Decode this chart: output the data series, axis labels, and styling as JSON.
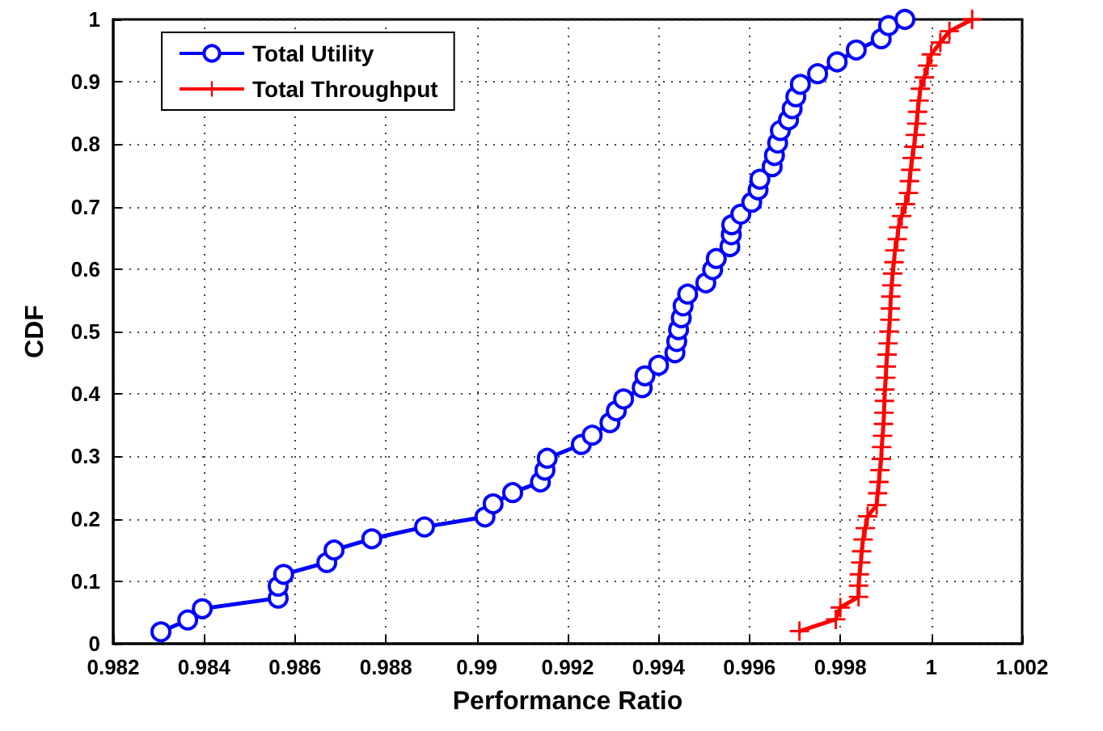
{
  "chart_data": {
    "type": "line",
    "xlabel": "Performance Ratio",
    "ylabel": "CDF",
    "xlim": [
      0.982,
      1.002
    ],
    "xticks": [
      0.982,
      0.984,
      0.986,
      0.988,
      0.99,
      0.992,
      0.994,
      0.996,
      0.998,
      1,
      1.002
    ],
    "ylim": [
      0,
      1
    ],
    "yticks": [
      0,
      0.1,
      0.2,
      0.3,
      0.4,
      0.5,
      0.6,
      0.7,
      0.8,
      0.9,
      1
    ],
    "grid": true,
    "legend": "top left",
    "line_style": "solid",
    "series": [
      {
        "name": "Total Utility",
        "color": "#0000ff",
        "marker": "circle",
        "x": [
          0.98305,
          0.98364,
          0.98396,
          0.98563,
          0.98563,
          0.98575,
          0.9867,
          0.98686,
          0.98769,
          0.98885,
          0.99018,
          0.99036,
          0.99079,
          0.9914,
          0.9915,
          0.99155,
          0.9923,
          0.99254,
          0.99293,
          0.99307,
          0.99323,
          0.99364,
          0.9937,
          0.994,
          0.99436,
          0.9944,
          0.99444,
          0.9945,
          0.99454,
          0.99464,
          0.99504,
          0.99519,
          0.99527,
          0.99557,
          0.9956,
          0.99561,
          0.99581,
          0.99605,
          0.99619,
          0.99623,
          0.9965,
          0.99655,
          0.99662,
          0.99668,
          0.99686,
          0.99694,
          0.99702,
          0.99712,
          0.9975,
          0.99793,
          0.99835,
          0.9989,
          0.99906,
          0.99942
        ],
        "values": [
          0.019,
          0.038,
          0.056,
          0.073,
          0.092,
          0.111,
          0.13,
          0.15,
          0.168,
          0.187,
          0.203,
          0.224,
          0.242,
          0.259,
          0.278,
          0.297,
          0.319,
          0.334,
          0.354,
          0.373,
          0.392,
          0.41,
          0.429,
          0.446,
          0.466,
          0.484,
          0.503,
          0.522,
          0.541,
          0.56,
          0.578,
          0.599,
          0.617,
          0.636,
          0.655,
          0.671,
          0.688,
          0.707,
          0.727,
          0.744,
          0.764,
          0.782,
          0.802,
          0.822,
          0.839,
          0.857,
          0.876,
          0.896,
          0.913,
          0.932,
          0.951,
          0.969,
          0.99,
          1.0
        ]
      },
      {
        "name": "Total Throughput",
        "color": "#ff0000",
        "marker": "cross",
        "x": [
          0.9971,
          0.9979,
          0.998,
          0.9984,
          0.9984,
          0.99842,
          0.99845,
          0.99847,
          0.9985,
          0.99855,
          0.9986,
          0.9988,
          0.99882,
          0.99885,
          0.99887,
          0.9989,
          0.99891,
          0.99893,
          0.99895,
          0.99896,
          0.99897,
          0.99898,
          0.999,
          0.99901,
          0.99903,
          0.99905,
          0.99907,
          0.99909,
          0.9991,
          0.99911,
          0.99913,
          0.99915,
          0.99918,
          0.9992,
          0.99925,
          0.99928,
          0.99935,
          0.99943,
          0.9995,
          0.99952,
          0.99955,
          0.99958,
          0.99962,
          0.99965,
          0.99968,
          0.9997,
          0.99973,
          0.99976,
          0.99985,
          0.99992,
          1.0,
          1.0002,
          1.0004,
          1.0009
        ],
        "values": [
          0.02,
          0.039,
          0.058,
          0.075,
          0.093,
          0.111,
          0.13,
          0.148,
          0.167,
          0.185,
          0.204,
          0.222,
          0.241,
          0.259,
          0.278,
          0.296,
          0.315,
          0.333,
          0.352,
          0.37,
          0.389,
          0.407,
          0.426,
          0.444,
          0.463,
          0.481,
          0.5,
          0.519,
          0.537,
          0.556,
          0.574,
          0.593,
          0.611,
          0.63,
          0.648,
          0.667,
          0.685,
          0.704,
          0.722,
          0.741,
          0.759,
          0.778,
          0.796,
          0.815,
          0.833,
          0.852,
          0.87,
          0.889,
          0.907,
          0.926,
          0.944,
          0.963,
          0.981,
          1.0
        ]
      }
    ]
  }
}
